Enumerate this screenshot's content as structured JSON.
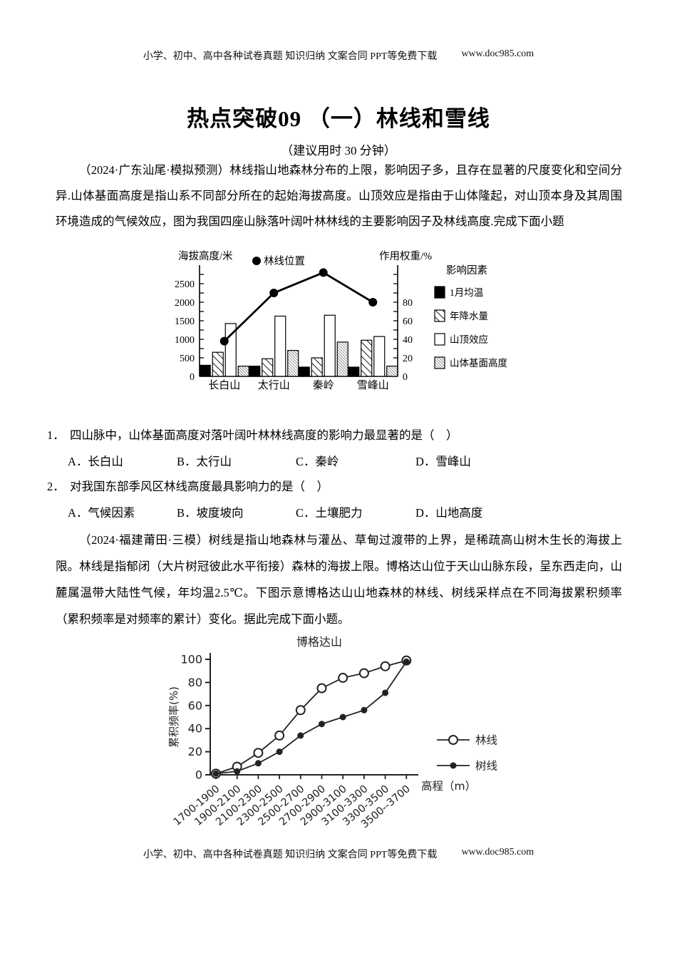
{
  "header": {
    "text": "小学、初中、高中各种试卷真题  知识归纳  文案合同  PPT等免费下载",
    "url": "www.doc985.com"
  },
  "footer": {
    "text": "小学、初中、高中各种试卷真题  知识归纳  文案合同  PPT等免费下载",
    "url": "www.doc985.com"
  },
  "title": "热点突破09 （一）林线和雪线",
  "subtitle": "（建议用时 30 分钟）",
  "passage1": "（2024·广东汕尾·模拟预测）林线指山地森林分布的上限，影响因子多，且存在显著的尺度变化和空间分异.山体基面高度是指山系不同部分所在的起始海拔高度。山顶效应是指由于山体隆起，对山顶本身及其周围环境造成的气候效应，图为我国四座山脉落叶阔叶林林线的主要影响因子及林线高度.完成下面小题",
  "passage2": "（2024·福建莆田·三模）树线是指山地森林与灌丛、草甸过渡带的上界，是稀疏高山树木生长的海拔上限。林线是指郁闭（大片树冠彼此水平衔接）森林的海拔上限。博格达山位于天山山脉东段，呈东西走向，山麓属温带大陆性气候，年均温2.5℃。下图示意博格达山山地森林的林线、树线采样点在不同海拔累积频率（累积频率是对频率的累计）变化。据此完成下面小题。",
  "questions": [
    {
      "number": "1．",
      "stem": "四山脉中，山体基面高度对落叶阔叶林林线高度的影响力最显著的是（　）",
      "options": [
        "A．长白山",
        "B．太行山",
        "C．秦岭",
        "D．雪峰山"
      ]
    },
    {
      "number": "2．",
      "stem": "对我国东部季风区林线高度最具影响力的是（　）",
      "options": [
        "A．气候因素",
        "B．坡度坡向",
        "C．土壤肥力",
        "D．山地高度"
      ]
    }
  ],
  "chart_data": [
    {
      "type": "bar",
      "title": "",
      "left_axis_label": "海拔高度/米",
      "right_axis_label": "作用权重/%",
      "point_legend": "林线位置",
      "legend_title": "影响因素",
      "categories": [
        "长白山",
        "太行山",
        "秦岭",
        "雪峰山"
      ],
      "line_series": {
        "name": "林线位置",
        "axis": "left",
        "unit": "米",
        "values": [
          950,
          2250,
          2800,
          2000
        ]
      },
      "bar_series": [
        {
          "name": "1月均温",
          "fill": "solid",
          "values": [
            12,
            11,
            10,
            10
          ]
        },
        {
          "name": "年降水量",
          "fill": "hatch-light",
          "values": [
            26,
            19,
            20,
            39
          ]
        },
        {
          "name": "山顶效应",
          "fill": "white",
          "values": [
            57,
            65,
            66,
            43
          ]
        },
        {
          "name": "山体基面高度",
          "fill": "hatch-dense",
          "values": [
            11,
            28,
            37,
            11
          ]
        }
      ],
      "bar_unit": "%",
      "left_ticks": [
        0,
        500,
        1000,
        1500,
        2000,
        2500
      ],
      "left_minor_step": 250,
      "left_max": 2900,
      "right_ticks": [
        0,
        20,
        40,
        60,
        80
      ],
      "right_minor_step": 10,
      "right_max": 110,
      "meters_per_weight_pct": 25,
      "grid": false
    },
    {
      "type": "line",
      "title": "博格达山",
      "ylabel": "累积频率(%)",
      "xlabel": "高程（m）",
      "categories": [
        "1700-1900",
        "1900-2100",
        "2100-2300",
        "2300-2500",
        "2500-2700",
        "2700-2900",
        "2900-3100",
        "3100-3300",
        "3300-3500",
        "3500--3700"
      ],
      "series": [
        {
          "name": "林线",
          "marker": "open",
          "values": [
            1,
            7,
            19,
            34,
            56,
            75,
            84,
            88,
            94,
            99
          ]
        },
        {
          "name": "树线",
          "marker": "filled",
          "values": [
            1,
            3,
            10,
            20,
            34,
            44,
            50,
            56,
            71,
            98
          ]
        }
      ],
      "yticks": [
        0,
        20,
        40,
        60,
        80,
        100
      ],
      "ylim": [
        0,
        100
      ],
      "grid": false,
      "legend_position": "right"
    }
  ]
}
